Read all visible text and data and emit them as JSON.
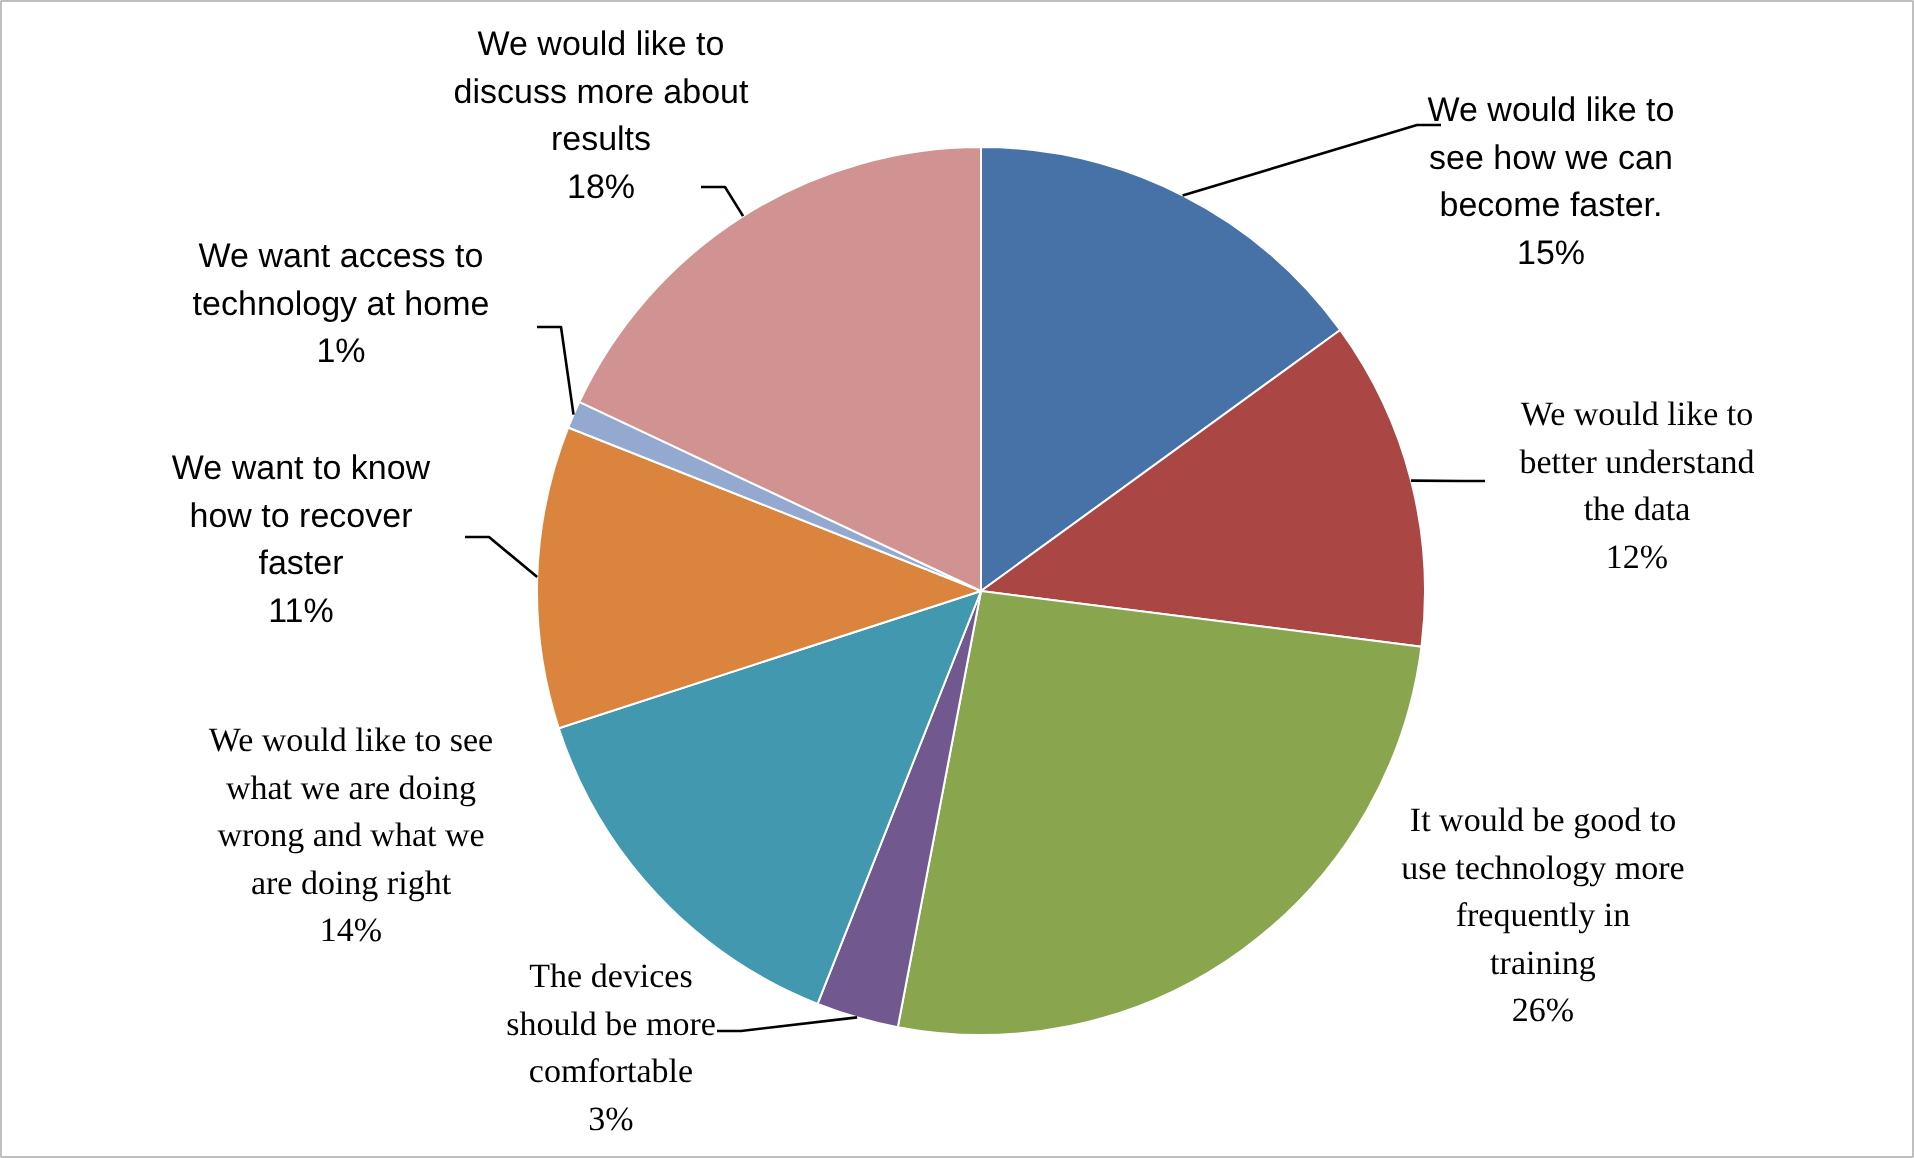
{
  "chart_data": {
    "type": "pie",
    "categories": [
      "We would like to see how we can become faster.",
      "We would like to better understand the data",
      "It would be good to use technology more frequently in training",
      "The devices should be more comfortable",
      "We would like to see what we are doing wrong and what we are doing right",
      "We want to know how to recover faster",
      "We want access to technology at home",
      "We would like to discuss more about results"
    ],
    "values": [
      15,
      12,
      26,
      3,
      14,
      11,
      1,
      18
    ],
    "value_labels": [
      "15%",
      "12%",
      "26%",
      "3%",
      "14%",
      "11%",
      "1%",
      "18%"
    ],
    "colors": [
      "#4672a8",
      "#aa4643",
      "#89a54e",
      "#71588f",
      "#4198af",
      "#db843d",
      "#93a9cf",
      "#d19392"
    ]
  }
}
